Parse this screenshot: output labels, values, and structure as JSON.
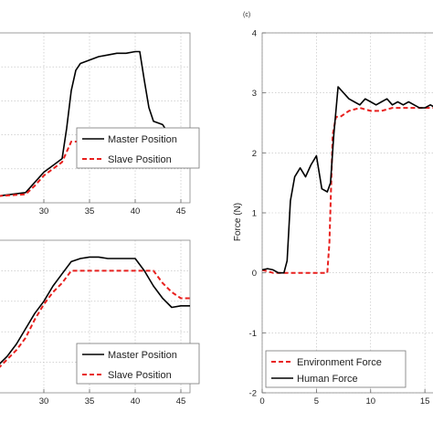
{
  "chart_data": [
    {
      "type": "line",
      "panel": "top-left",
      "xlim": [
        25,
        46
      ],
      "ylim": [
        0,
        5
      ],
      "x_ticks": [
        30,
        35,
        40,
        45
      ],
      "y_ticks": [],
      "grid": true,
      "legend_placement": "bottom-right",
      "series": [
        {
          "name": "Master Position",
          "color": "#000000",
          "style": "solid",
          "points": [
            [
              25,
              0.2
            ],
            [
              28,
              0.3
            ],
            [
              29,
              0.6
            ],
            [
              30,
              0.9
            ],
            [
              31,
              1.1
            ],
            [
              32,
              1.3
            ],
            [
              32.5,
              2.2
            ],
            [
              33,
              3.3
            ],
            [
              33.5,
              3.9
            ],
            [
              34,
              4.1
            ],
            [
              35,
              4.2
            ],
            [
              36,
              4.3
            ],
            [
              37,
              4.35
            ],
            [
              38,
              4.4
            ],
            [
              39,
              4.4
            ],
            [
              40,
              4.45
            ],
            [
              40.5,
              4.45
            ],
            [
              41,
              3.6
            ],
            [
              41.5,
              2.8
            ],
            [
              42,
              2.4
            ],
            [
              43,
              2.3
            ],
            [
              44,
              1.9
            ],
            [
              45,
              1.9
            ],
            [
              46,
              1.9
            ]
          ]
        },
        {
          "name": "Slave Position",
          "color": "#e8201e",
          "style": "dashed",
          "points": [
            [
              25,
              0.2
            ],
            [
              28,
              0.25
            ],
            [
              29,
              0.5
            ],
            [
              30,
              0.8
            ],
            [
              31,
              1.0
            ],
            [
              32,
              1.2
            ],
            [
              33,
              1.8
            ],
            [
              34,
              1.8
            ],
            [
              36,
              1.8
            ],
            [
              38,
              1.8
            ],
            [
              40,
              1.8
            ],
            [
              42,
              1.8
            ],
            [
              44,
              1.85
            ],
            [
              46,
              1.85
            ]
          ]
        }
      ]
    },
    {
      "type": "line",
      "panel": "bottom-left",
      "xlim": [
        25,
        46
      ],
      "ylim": [
        0,
        5
      ],
      "x_ticks": [
        30,
        35,
        40,
        45
      ],
      "y_ticks": [],
      "grid": true,
      "legend_placement": "bottom-right",
      "series": [
        {
          "name": "Master Position",
          "color": "#000000",
          "style": "solid",
          "points": [
            [
              25,
              0.9
            ],
            [
              26,
              1.2
            ],
            [
              27,
              1.6
            ],
            [
              28,
              2.1
            ],
            [
              29,
              2.6
            ],
            [
              30,
              3.0
            ],
            [
              31,
              3.5
            ],
            [
              32,
              3.9
            ],
            [
              33,
              4.3
            ],
            [
              34,
              4.4
            ],
            [
              35,
              4.45
            ],
            [
              36,
              4.45
            ],
            [
              37,
              4.4
            ],
            [
              38,
              4.4
            ],
            [
              39,
              4.4
            ],
            [
              40,
              4.4
            ],
            [
              41,
              4.0
            ],
            [
              42,
              3.5
            ],
            [
              43,
              3.1
            ],
            [
              44,
              2.8
            ],
            [
              45,
              2.85
            ],
            [
              46,
              2.85
            ]
          ]
        },
        {
          "name": "Slave Position",
          "color": "#e8201e",
          "style": "dashed",
          "points": [
            [
              25,
              0.8
            ],
            [
              26,
              1.1
            ],
            [
              27,
              1.4
            ],
            [
              28,
              1.8
            ],
            [
              29,
              2.4
            ],
            [
              30,
              2.9
            ],
            [
              31,
              3.3
            ],
            [
              32,
              3.6
            ],
            [
              33,
              4.0
            ],
            [
              34,
              4.0
            ],
            [
              36,
              4.0
            ],
            [
              38,
              4.0
            ],
            [
              40,
              4.0
            ],
            [
              42,
              4.0
            ],
            [
              43,
              3.6
            ],
            [
              44,
              3.3
            ],
            [
              45,
              3.1
            ],
            [
              46,
              3.1
            ]
          ]
        }
      ]
    },
    {
      "type": "line",
      "panel": "right",
      "panel_label": "(c)",
      "xlim": [
        0,
        16
      ],
      "ylim": [
        -2,
        4
      ],
      "x_ticks": [
        0,
        5,
        10,
        15
      ],
      "y_ticks": [
        4,
        3,
        2,
        1,
        0,
        -1,
        -2
      ],
      "ylabel": "Force (N)",
      "grid": true,
      "legend_placement": "bottom-left",
      "series": [
        {
          "name": "Environment Force",
          "color": "#e8201e",
          "style": "dashed",
          "points": [
            [
              0,
              0.05
            ],
            [
              1,
              0.0
            ],
            [
              2,
              0.0
            ],
            [
              3,
              0.0
            ],
            [
              4,
              0.0
            ],
            [
              5,
              0.0
            ],
            [
              6,
              0.0
            ],
            [
              6.2,
              0.5
            ],
            [
              6.5,
              2.3
            ],
            [
              6.8,
              2.6
            ],
            [
              7.2,
              2.6
            ],
            [
              8,
              2.7
            ],
            [
              9,
              2.75
            ],
            [
              10,
              2.7
            ],
            [
              11,
              2.7
            ],
            [
              12,
              2.75
            ],
            [
              13,
              2.75
            ],
            [
              14,
              2.75
            ],
            [
              15,
              2.75
            ],
            [
              16,
              2.75
            ]
          ]
        },
        {
          "name": "Human Force",
          "color": "#000000",
          "style": "solid",
          "points": [
            [
              0,
              0.05
            ],
            [
              0.5,
              0.07
            ],
            [
              1,
              0.05
            ],
            [
              1.5,
              0.0
            ],
            [
              2,
              0.0
            ],
            [
              2.3,
              0.2
            ],
            [
              2.6,
              1.2
            ],
            [
              3,
              1.6
            ],
            [
              3.5,
              1.75
            ],
            [
              4,
              1.6
            ],
            [
              4.5,
              1.8
            ],
            [
              5,
              1.95
            ],
            [
              5.5,
              1.4
            ],
            [
              6,
              1.35
            ],
            [
              6.3,
              1.5
            ],
            [
              6.6,
              2.3
            ],
            [
              7,
              3.1
            ],
            [
              7.5,
              3.0
            ],
            [
              8,
              2.9
            ],
            [
              8.5,
              2.85
            ],
            [
              9,
              2.8
            ],
            [
              9.5,
              2.9
            ],
            [
              10,
              2.85
            ],
            [
              10.5,
              2.8
            ],
            [
              11,
              2.85
            ],
            [
              11.5,
              2.9
            ],
            [
              12,
              2.8
            ],
            [
              12.5,
              2.85
            ],
            [
              13,
              2.8
            ],
            [
              13.5,
              2.85
            ],
            [
              14,
              2.8
            ],
            [
              14.5,
              2.75
            ],
            [
              15,
              2.75
            ],
            [
              15.5,
              2.8
            ],
            [
              16,
              2.75
            ]
          ]
        }
      ]
    }
  ]
}
